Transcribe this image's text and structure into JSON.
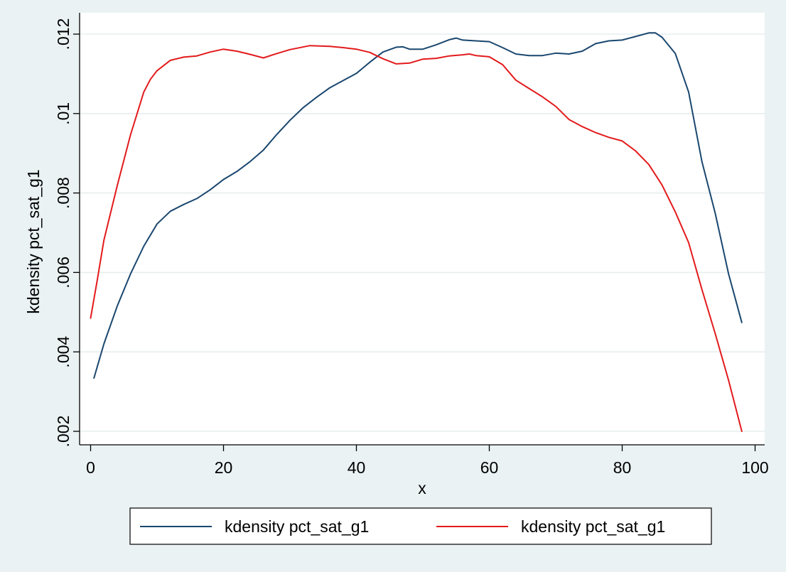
{
  "chart_data": {
    "type": "line",
    "title": "",
    "xlabel": "x",
    "ylabel": "kdensity pct_sat_g1",
    "xlim": [
      0,
      100
    ],
    "ylim": [
      0.002,
      0.012
    ],
    "xticks": [
      0,
      20,
      40,
      60,
      80,
      100
    ],
    "xtick_labels": [
      "0",
      "20",
      "40",
      "60",
      "80",
      "100"
    ],
    "yticks": [
      0.002,
      0.004,
      0.006,
      0.008,
      0.01,
      0.012
    ],
    "ytick_labels": [
      ".002",
      ".004",
      ".006",
      ".008",
      ".01",
      ".012"
    ],
    "grid": true,
    "legend_position": "bottom",
    "series": [
      {
        "name": "kdensity pct_sat_g1",
        "color": "#1a476f",
        "x": [
          0.5,
          2,
          4,
          6,
          8,
          10,
          12,
          14,
          16,
          18,
          20,
          22,
          24,
          26,
          28,
          30,
          32,
          34,
          36,
          38,
          40,
          42,
          44,
          46,
          47,
          48,
          50,
          52,
          54,
          55,
          56,
          58,
          60,
          62,
          64,
          66,
          68,
          70,
          72,
          74,
          76,
          78,
          80,
          82,
          84,
          85,
          86,
          88,
          90,
          92,
          94,
          96,
          98
        ],
        "y": [
          0.00334,
          0.0042,
          0.00515,
          0.00596,
          0.00666,
          0.00722,
          0.00754,
          0.00771,
          0.00786,
          0.00808,
          0.00834,
          0.00854,
          0.00879,
          0.00908,
          0.00947,
          0.00983,
          0.01015,
          0.01041,
          0.01065,
          0.01083,
          0.01101,
          0.01129,
          0.01155,
          0.01167,
          0.01168,
          0.01162,
          0.01162,
          0.01173,
          0.01186,
          0.0119,
          0.01185,
          0.01183,
          0.01181,
          0.01166,
          0.0115,
          0.01146,
          0.01146,
          0.01152,
          0.0115,
          0.01157,
          0.01176,
          0.01183,
          0.01185,
          0.01194,
          0.01203,
          0.01203,
          0.01192,
          0.01151,
          0.01054,
          0.00879,
          0.00749,
          0.00597,
          0.00474
        ]
      },
      {
        "name": "kdensity pct_sat_g1",
        "color": "#e31a1c",
        "x": [
          0,
          1,
          2,
          4,
          6,
          8,
          9,
          10,
          12,
          14,
          16,
          18,
          20,
          22,
          24,
          26,
          28,
          30,
          33,
          36,
          38,
          40,
          42,
          44,
          46,
          48,
          50,
          52,
          54,
          56,
          57,
          58,
          60,
          62,
          64,
          66,
          68,
          70,
          72,
          74,
          76,
          78,
          80,
          82,
          84,
          86,
          88,
          90,
          92,
          94,
          96,
          98
        ],
        "y": [
          0.00485,
          0.0058,
          0.00681,
          0.00818,
          0.00946,
          0.01054,
          0.01086,
          0.01108,
          0.01134,
          0.01142,
          0.01145,
          0.01155,
          0.01162,
          0.01157,
          0.01149,
          0.0114,
          0.01151,
          0.01161,
          0.01171,
          0.01169,
          0.01166,
          0.01162,
          0.01154,
          0.01138,
          0.01125,
          0.01127,
          0.01137,
          0.01139,
          0.01145,
          0.01148,
          0.0115,
          0.01146,
          0.01143,
          0.01123,
          0.01084,
          0.01063,
          0.01042,
          0.01018,
          0.00985,
          0.00967,
          0.00952,
          0.0094,
          0.00931,
          0.00906,
          0.00872,
          0.0082,
          0.00752,
          0.00675,
          0.00557,
          0.00446,
          0.00329,
          0.002
        ]
      }
    ]
  }
}
